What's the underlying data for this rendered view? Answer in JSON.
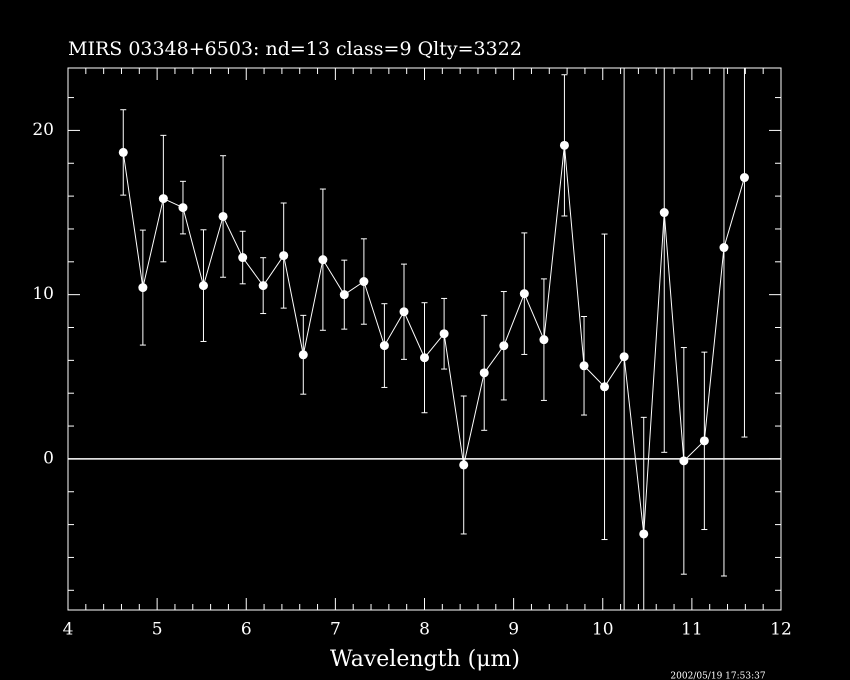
{
  "chart_data": {
    "type": "errorbar",
    "title": "MIRS 03348+6503:    nd=13    class=9    Qlty=3322",
    "xlabel": "Wavelength (μm)",
    "timestamp": "2002/05/19 17:53:37",
    "color": "#ffffff",
    "x": [
      4.62,
      4.84,
      5.07,
      5.29,
      5.52,
      5.74,
      5.96,
      6.19,
      6.42,
      6.64,
      6.86,
      7.1,
      7.32,
      7.55,
      7.77,
      8.0,
      8.22,
      8.44,
      8.67,
      8.89,
      9.12,
      9.34,
      9.57,
      9.79,
      10.02,
      10.24,
      10.46,
      10.69,
      10.91,
      11.14,
      11.36,
      11.59
    ],
    "values": [
      18.66,
      10.43,
      15.85,
      15.3,
      10.55,
      14.76,
      12.26,
      10.55,
      12.38,
      6.34,
      12.13,
      10.0,
      10.8,
      6.9,
      8.96,
      6.16,
      7.62,
      -0.37,
      5.24,
      6.89,
      10.06,
      7.26,
      19.09,
      5.67,
      4.39,
      6.22,
      -4.57,
      15.0,
      -0.12,
      1.1,
      12.87,
      17.13
    ],
    "errors": [
      2.6,
      3.5,
      3.85,
      1.6,
      3.4,
      3.7,
      1.6,
      1.7,
      3.2,
      2.4,
      4.3,
      2.1,
      2.6,
      2.55,
      2.9,
      3.35,
      2.15,
      4.2,
      3.5,
      3.3,
      3.7,
      3.7,
      4.3,
      3.0,
      9.3,
      20,
      7.1,
      14.6,
      6.9,
      5.4,
      20,
      15.8
    ],
    "xlim": [
      4,
      12
    ],
    "ylim": [
      -9.2,
      23.8
    ],
    "xticks": [
      4,
      5,
      6,
      7,
      8,
      9,
      10,
      11,
      12
    ],
    "yticks": [
      0,
      10,
      20
    ],
    "minor_xticks": [
      4.2,
      4.4,
      4.6,
      4.8,
      5.2,
      5.4,
      5.6,
      5.8,
      6.2,
      6.4,
      6.6,
      6.8,
      7.2,
      7.4,
      7.6,
      7.8,
      8.2,
      8.4,
      8.6,
      8.8,
      9.2,
      9.4,
      9.6,
      9.8,
      10.2,
      10.4,
      10.6,
      10.8,
      11.2,
      11.4,
      11.6,
      11.8
    ],
    "minor_yticks": [
      -8,
      -6,
      -4,
      -2,
      2,
      4,
      6,
      8,
      12,
      14,
      16,
      18,
      22
    ],
    "zero_line": 0
  }
}
